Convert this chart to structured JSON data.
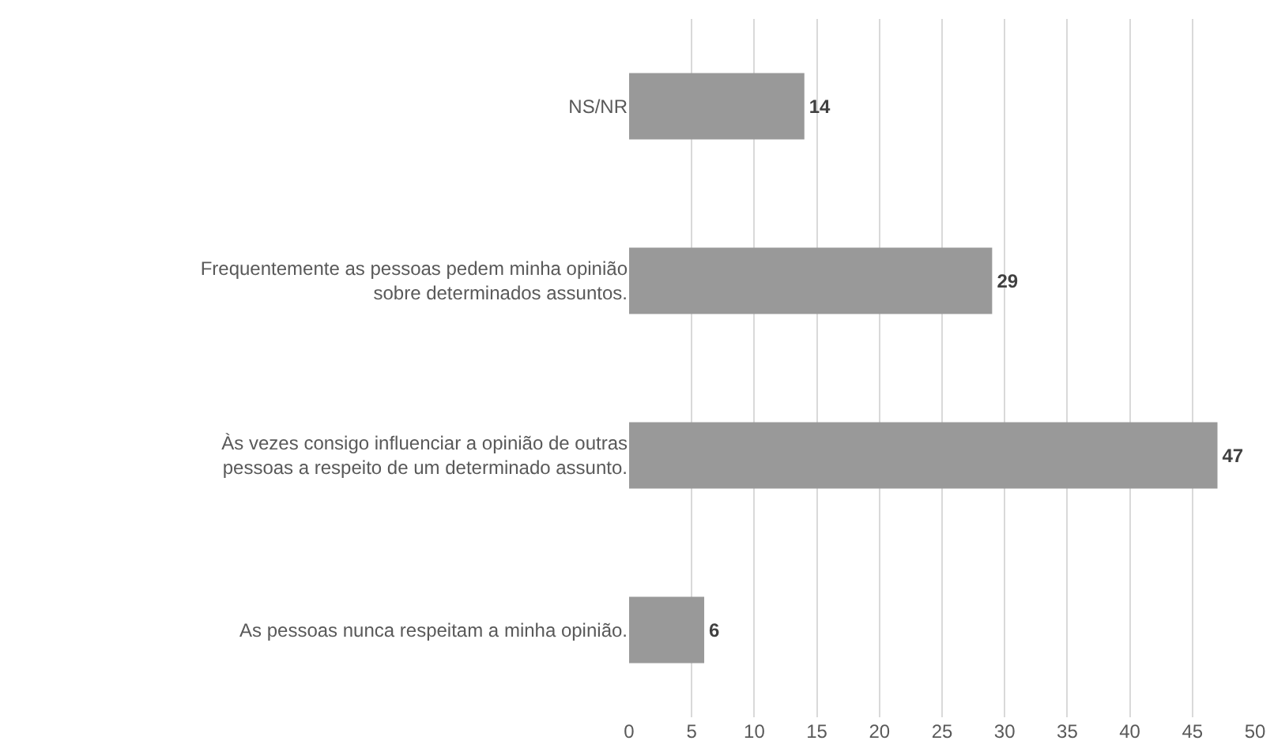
{
  "chart_data": {
    "type": "bar",
    "orientation": "horizontal",
    "categories": [
      "NS/NR",
      "Frequentemente as pessoas pedem minha opinião\nsobre determinados assuntos.",
      "Às vezes consigo influenciar a opinião de outras\npessoas a respeito de um determinado assunto.",
      "As pessoas nunca respeitam a minha opinião."
    ],
    "values": [
      14,
      29,
      47,
      6
    ],
    "color": "#999999",
    "xlim": [
      0,
      50
    ],
    "xticks": [
      0,
      5,
      10,
      15,
      20,
      25,
      30,
      35,
      40,
      45,
      50
    ],
    "grid": "x",
    "data_labels": true
  }
}
